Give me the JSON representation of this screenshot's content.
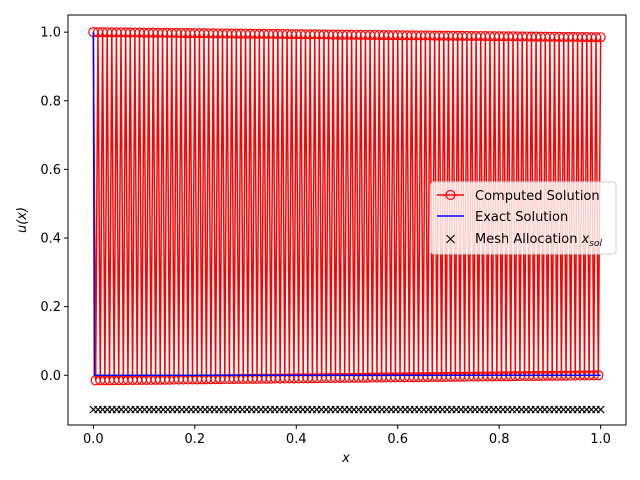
{
  "chart_data": {
    "type": "line",
    "xlabel": "x",
    "ylabel": "u(x)",
    "xlim": [
      -0.05,
      1.05
    ],
    "ylim": [
      -0.145,
      1.05
    ],
    "xticks": [
      0.0,
      0.2,
      0.4,
      0.6,
      0.8,
      1.0
    ],
    "xtick_labels": [
      "0.0",
      "0.2",
      "0.4",
      "0.6",
      "0.8",
      "1.0"
    ],
    "yticks": [
      0.0,
      0.2,
      0.4,
      0.6,
      0.8,
      1.0
    ],
    "ytick_labels": [
      "0.0",
      "0.2",
      "0.4",
      "0.6",
      "0.8",
      "1.0"
    ],
    "grid": false,
    "legend_position": "center-right",
    "legend": [
      {
        "label": "Computed Solution",
        "marker": "circle-open",
        "color": "#ff0000"
      },
      {
        "label": "Exact Solution",
        "marker": "line",
        "color": "#0000ff"
      },
      {
        "label_main": "Mesh Allocation ",
        "label_var": "x",
        "label_sub": "sol",
        "marker": "x",
        "color": "#000000"
      }
    ],
    "series": [
      {
        "name": "Computed Solution",
        "color": "#ff0000",
        "style": "alternating",
        "n_points": 221,
        "x_range": [
          0.0,
          1.0
        ],
        "high_value_start": 1.0,
        "high_value_end": 0.985,
        "low_value_start": -0.015,
        "low_value_end": 0.0
      },
      {
        "name": "Exact Solution",
        "color": "#0000ff",
        "x": [
          0.0,
          0.0,
          0.002,
          1.0
        ],
        "y": [
          1.0,
          1.0,
          0.0,
          0.0
        ]
      },
      {
        "name": "Mesh Allocation",
        "color": "#000000",
        "marker": "x",
        "y_value": -0.1,
        "n_points": 110,
        "x_range": [
          0.0,
          1.0
        ]
      }
    ]
  }
}
